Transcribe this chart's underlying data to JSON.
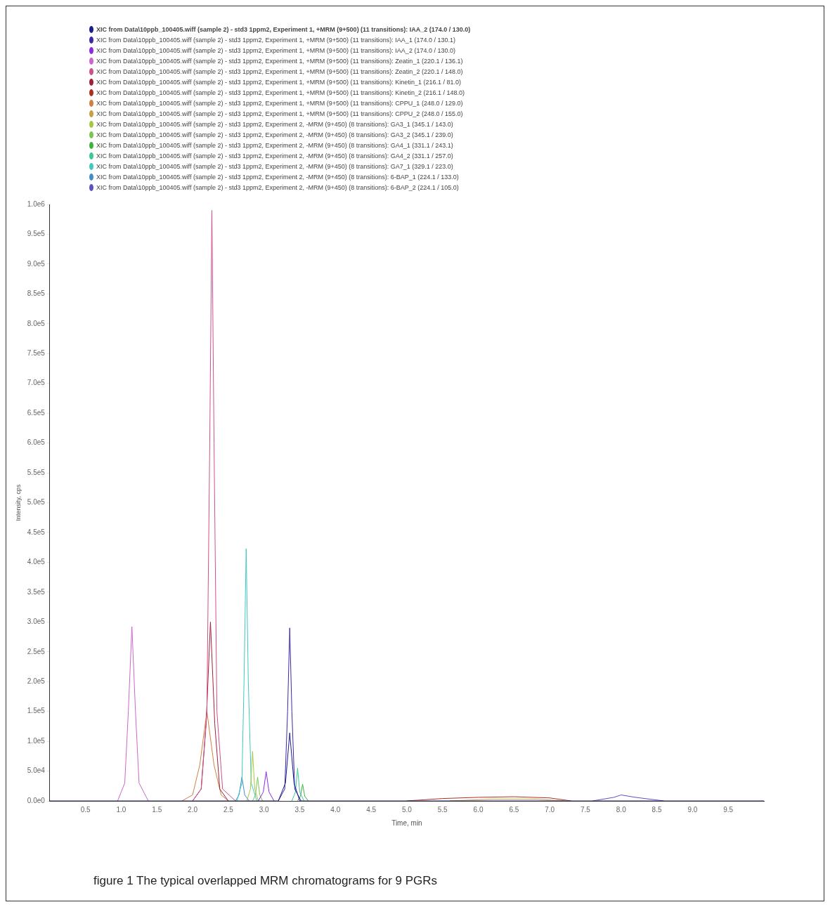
{
  "chart_data": {
    "type": "line",
    "xlabel": "Time, min",
    "ylabel": "Intensity, cps",
    "annotations": [
      "figure 1 The typical overlapped MRM chromatograms for 9 PGRs"
    ],
    "xlim": [
      0,
      10
    ],
    "ylim": [
      0,
      1000000
    ],
    "xticks": [
      0.5,
      {
        "value": 1,
        "label": "1.0"
      },
      1.5,
      {
        "value": 2,
        "label": "2.0"
      },
      2.5,
      {
        "value": 3,
        "label": "3.0"
      },
      3.5,
      {
        "value": 4,
        "label": "4.0"
      },
      4.5,
      {
        "value": 5,
        "label": "5.0"
      },
      5.5,
      {
        "value": 6,
        "label": "6.0"
      },
      6.5,
      {
        "value": 7,
        "label": "7.0"
      },
      7.5,
      {
        "value": 8,
        "label": "8.0"
      },
      8.5,
      {
        "value": 9,
        "label": "9.0"
      },
      9.5
    ],
    "yticks": [
      {
        "value": 0,
        "label": "0.0e0"
      },
      {
        "value": 50000,
        "label": "5.0e4"
      },
      {
        "value": 100000,
        "label": "1.0e5"
      },
      {
        "value": 150000,
        "label": "1.5e5"
      },
      {
        "value": 200000,
        "label": "2.0e5"
      },
      {
        "value": 250000,
        "label": "2.5e5"
      },
      {
        "value": 300000,
        "label": "3.0e5"
      },
      {
        "value": 350000,
        "label": "3.5e5"
      },
      {
        "value": 400000,
        "label": "4.0e5"
      },
      {
        "value": 450000,
        "label": "4.5e5"
      },
      {
        "value": 500000,
        "label": "5.0e5"
      },
      {
        "value": 550000,
        "label": "5.5e5"
      },
      {
        "value": 600000,
        "label": "6.0e5"
      },
      {
        "value": 650000,
        "label": "6.5e5"
      },
      {
        "value": 700000,
        "label": "7.0e5"
      },
      {
        "value": 750000,
        "label": "7.5e5"
      },
      {
        "value": 800000,
        "label": "8.0e5"
      },
      {
        "value": 850000,
        "label": "8.5e5"
      },
      {
        "value": 900000,
        "label": "9.0e5"
      },
      {
        "value": 950000,
        "label": "9.5e5"
      },
      {
        "value": 1000000,
        "label": "1.0e6"
      }
    ],
    "grid": false,
    "legend": "top left",
    "marker": "none",
    "line_style": "solid",
    "series": [
      {
        "name": "XIC from Data\\10ppb_100405.wiff (sample 2) - std3 1ppm2, Experiment 1, +MRM (9+500) (11 transitions): IAA_2 (174.0 / 130.0)",
        "color": "#1c1c8a",
        "x": [
          0,
          3.2,
          3.3,
          3.36,
          3.42,
          3.5,
          10
        ],
        "values": [
          0,
          0,
          30000,
          114000,
          30000,
          0,
          0
        ]
      },
      {
        "name": "XIC from Data\\10ppb_100405.wiff (sample 2) - std3 1ppm2, Experiment 1, +MRM (9+500) (11 transitions): IAA_1 (174.0 / 130.1)",
        "color": "#3a2aa8",
        "x": [
          3.2,
          3.29,
          3.33,
          3.36,
          3.39,
          3.43,
          3.52
        ],
        "values": [
          0,
          20000,
          150000,
          290000,
          150000,
          20000,
          0
        ]
      },
      {
        "name": "XIC from Data\\10ppb_100405.wiff (sample 2) - std3 1ppm2, Experiment 1, +MRM (9+500) (11 transitions): IAA_2 (174.0 / 130.0)",
        "color": "#8a2be2",
        "x": [
          2.92,
          2.99,
          3.03,
          3.07,
          3.14
        ],
        "values": [
          0,
          15000,
          49000,
          15000,
          0
        ]
      },
      {
        "name": "XIC from Data\\10ppb_100405.wiff (sample 2) - std3 1ppm2, Experiment 1, +MRM (9+500) (11 transitions): Zeatin_1 (220.1 / 136.1)",
        "color": "#cc66cc",
        "x": [
          0.95,
          1.05,
          1.1,
          1.15,
          1.2,
          1.25,
          1.38
        ],
        "values": [
          0,
          30000,
          150000,
          292000,
          150000,
          30000,
          0
        ]
      },
      {
        "name": "XIC from Data\\10ppb_100405.wiff (sample 2) - std3 1ppm2, Experiment 1, +MRM (9+500) (11 transitions): Zeatin_2 (220.1 / 148.0)",
        "color": "#d0508a",
        "x": [
          2.0,
          2.12,
          2.2,
          2.24,
          2.27,
          2.3,
          2.34,
          2.42,
          2.6
        ],
        "values": [
          0,
          20000,
          150000,
          600000,
          990000,
          600000,
          150000,
          20000,
          0
        ]
      },
      {
        "name": "XIC from Data\\10ppb_100405.wiff (sample 2) - std3 1ppm2, Experiment 1, +MRM (9+500) (11 transitions): Kinetin_1 (216.1 / 81.0)",
        "color": "#a0203a",
        "x": [
          2.0,
          2.12,
          2.19,
          2.25,
          2.31,
          2.38,
          2.5
        ],
        "values": [
          0,
          20000,
          130000,
          300000,
          130000,
          20000,
          0
        ]
      },
      {
        "name": "XIC from Data\\10ppb_100405.wiff (sample 2) - std3 1ppm2, Experiment 1, +MRM (9+500) (11 transitions): Kinetin_2 (216.1 / 148.0)",
        "color": "#b03020",
        "x": [
          5.0,
          5.5,
          6.0,
          6.5,
          7.0,
          7.3
        ],
        "values": [
          0,
          4000,
          6000,
          7000,
          5000,
          0
        ]
      },
      {
        "name": "XIC from Data\\10ppb_100405.wiff (sample 2) - std3 1ppm2, Experiment 1, +MRM (9+500) (11 transitions): CPPU_1 (248.0 / 129.0)",
        "color": "#d08040",
        "x": [
          1.85,
          2.0,
          2.1,
          2.2,
          2.3,
          2.4,
          2.5
        ],
        "values": [
          0,
          10000,
          60000,
          150000,
          60000,
          10000,
          0
        ]
      },
      {
        "name": "XIC from Data\\10ppb_100405.wiff (sample 2) - std3 1ppm2, Experiment 1, +MRM (9+500) (11 transitions): CPPU_2 (248.0 / 155.0)",
        "color": "#c8a040",
        "x": [
          5.6,
          6.2,
          6.8,
          7.2
        ],
        "values": [
          0,
          3000,
          3000,
          0
        ]
      },
      {
        "name": "XIC from Data\\10ppb_100405.wiff (sample 2) - std3 1ppm2, Experiment 2, -MRM (9+450) (8 transitions): GA3_1 (345.1 / 143.0)",
        "color": "#a8c83c",
        "x": [
          2.76,
          2.81,
          2.84,
          2.87,
          2.92
        ],
        "values": [
          0,
          20000,
          83000,
          20000,
          0
        ]
      },
      {
        "name": "XIC from Data\\10ppb_100405.wiff (sample 2) - std3 1ppm2, Experiment 2, -MRM (9+450) (8 transitions): GA3_2 (345.1 / 239.0)",
        "color": "#78c850",
        "x": [
          2.84,
          2.88,
          2.91,
          2.94,
          2.98
        ],
        "values": [
          0,
          10000,
          40000,
          10000,
          0
        ]
      },
      {
        "name": "XIC from Data\\10ppb_100405.wiff (sample 2) - std3 1ppm2, Experiment 2, -MRM (9+450) (8 transitions): GA4_1 (331.1 / 243.1)",
        "color": "#3cb43c",
        "x": [
          3.47,
          3.51,
          3.54,
          3.57,
          3.62
        ],
        "values": [
          0,
          8000,
          28000,
          8000,
          0
        ]
      },
      {
        "name": "XIC from Data\\10ppb_100405.wiff (sample 2) - std3 1ppm2, Experiment 2, -MRM (9+450) (8 transitions): GA4_2 (331.1 / 257.0)",
        "color": "#3cc896",
        "x": [
          3.39,
          3.44,
          3.47,
          3.5,
          3.56
        ],
        "values": [
          0,
          15000,
          55000,
          15000,
          0
        ]
      },
      {
        "name": "XIC from Data\\10ppb_100405.wiff (sample 2) - std3 1ppm2, Experiment 2, -MRM (9+450) (8 transitions): GA7_1 (329.1 / 223.0)",
        "color": "#40c8c0",
        "x": [
          2.62,
          2.69,
          2.72,
          2.75,
          2.78,
          2.82,
          2.9
        ],
        "values": [
          0,
          30000,
          200000,
          423000,
          200000,
          30000,
          0
        ]
      },
      {
        "name": "XIC from Data\\10ppb_100405.wiff (sample 2) - std3 1ppm2, Experiment 2, -MRM (9+450) (8 transitions): 6-BAP_1 (224.1 / 133.0)",
        "color": "#4090c8",
        "x": [
          2.6,
          2.65,
          2.69,
          2.73,
          2.79
        ],
        "values": [
          0,
          10000,
          40000,
          10000,
          0
        ]
      },
      {
        "name": "XIC from Data\\10ppb_100405.wiff (sample 2) - std3 1ppm2, Experiment 2, -MRM (9+450) (8 transitions): 6-BAP_2 (224.1 / 105.0)",
        "color": "#6050c0",
        "x": [
          7.6,
          7.9,
          8.0,
          8.2,
          8.6
        ],
        "values": [
          0,
          6000,
          10000,
          6000,
          0
        ]
      }
    ]
  }
}
